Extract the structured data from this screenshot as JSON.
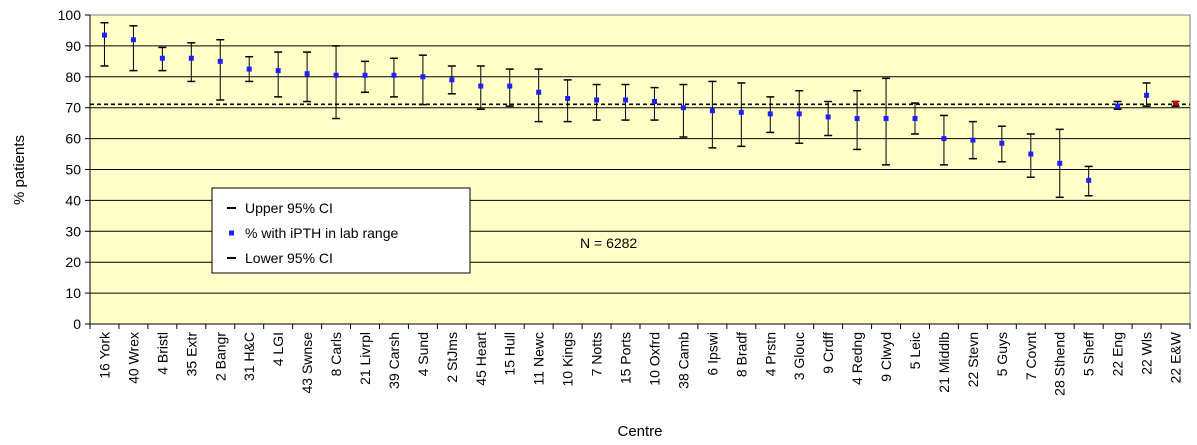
{
  "chart_data": {
    "type": "scatter",
    "title": "",
    "xlabel": "Centre",
    "ylabel": "% patients",
    "ylim": [
      0,
      100
    ],
    "yticks": [
      0,
      10,
      20,
      30,
      40,
      50,
      60,
      70,
      80,
      90,
      100
    ],
    "grid": true,
    "background_color": "#FFFFC8",
    "point_color": "#1F1FFF",
    "highlight_point_color": "#CC0000",
    "reference_line": {
      "value": 71.1,
      "style": "dashed"
    },
    "legend": {
      "placement": "center-left",
      "entries": [
        "Upper 95% CI",
        "% with iPTH in lab range",
        "Lower 95% CI"
      ]
    },
    "annotation": "N = 6282",
    "categories": [
      "16 York",
      "40 Wrex",
      "4 Bristl",
      "35 Extr",
      "2 Bangr",
      "31 H&C",
      "4 LGI",
      "43 Swnse",
      "8 Carls",
      "21 Livrpl",
      "39 Carsh",
      "4 Sund",
      "2 StJms",
      "45 Heart",
      "15 Hull",
      "11 Newc",
      "10 Kings",
      "7 Notts",
      "15 Ports",
      "10 Oxfrd",
      "38 Camb",
      "6 Ipswi",
      "8 Bradf",
      "4 Prstn",
      "3 Glouc",
      "9 Crdff",
      "4 Redng",
      "9 Clwyd",
      "5 Leic",
      "21 Middlb",
      "22 Stevn",
      "5 Guys",
      "7 Covnt",
      "28 Sthend",
      "5 Sheff",
      "22 Eng",
      "22 Wls",
      "22 E&W"
    ],
    "series": [
      {
        "name": "Upper 95% CI",
        "values": [
          97.5,
          96.5,
          89.5,
          91,
          92,
          86.5,
          88,
          88,
          90,
          85,
          86,
          87,
          83.5,
          83.5,
          82.5,
          82.5,
          79,
          77.5,
          77.5,
          76.5,
          77.5,
          78.5,
          78,
          73.5,
          75.5,
          72,
          75.5,
          79.5,
          71.5,
          67.5,
          65.5,
          64,
          61.5,
          63,
          51,
          72,
          78,
          72
        ]
      },
      {
        "name": "% with iPTH in lab range",
        "values": [
          93.5,
          92,
          86,
          86,
          85,
          82.5,
          82,
          81,
          80.5,
          80.5,
          80.5,
          80,
          79,
          77,
          77,
          75,
          73,
          72.5,
          72.5,
          72,
          70,
          69,
          68.5,
          68,
          68,
          67,
          66.5,
          66.5,
          66.5,
          60,
          59.5,
          58.5,
          55,
          52,
          46.5,
          70.5,
          74,
          71.5
        ]
      },
      {
        "name": "Lower 95% CI",
        "values": [
          83.5,
          82,
          82,
          78.5,
          72.5,
          78.5,
          73.5,
          72,
          66.5,
          75,
          73.5,
          71,
          74.5,
          69.5,
          70.5,
          65.5,
          65.5,
          66,
          66,
          66,
          60.5,
          57,
          57.5,
          62,
          58.5,
          61,
          56.5,
          51.5,
          61.5,
          51.5,
          53.5,
          52.5,
          47.5,
          41,
          41.5,
          69.5,
          70.5,
          70.5
        ]
      }
    ],
    "highlight_category": "22 E&W"
  }
}
